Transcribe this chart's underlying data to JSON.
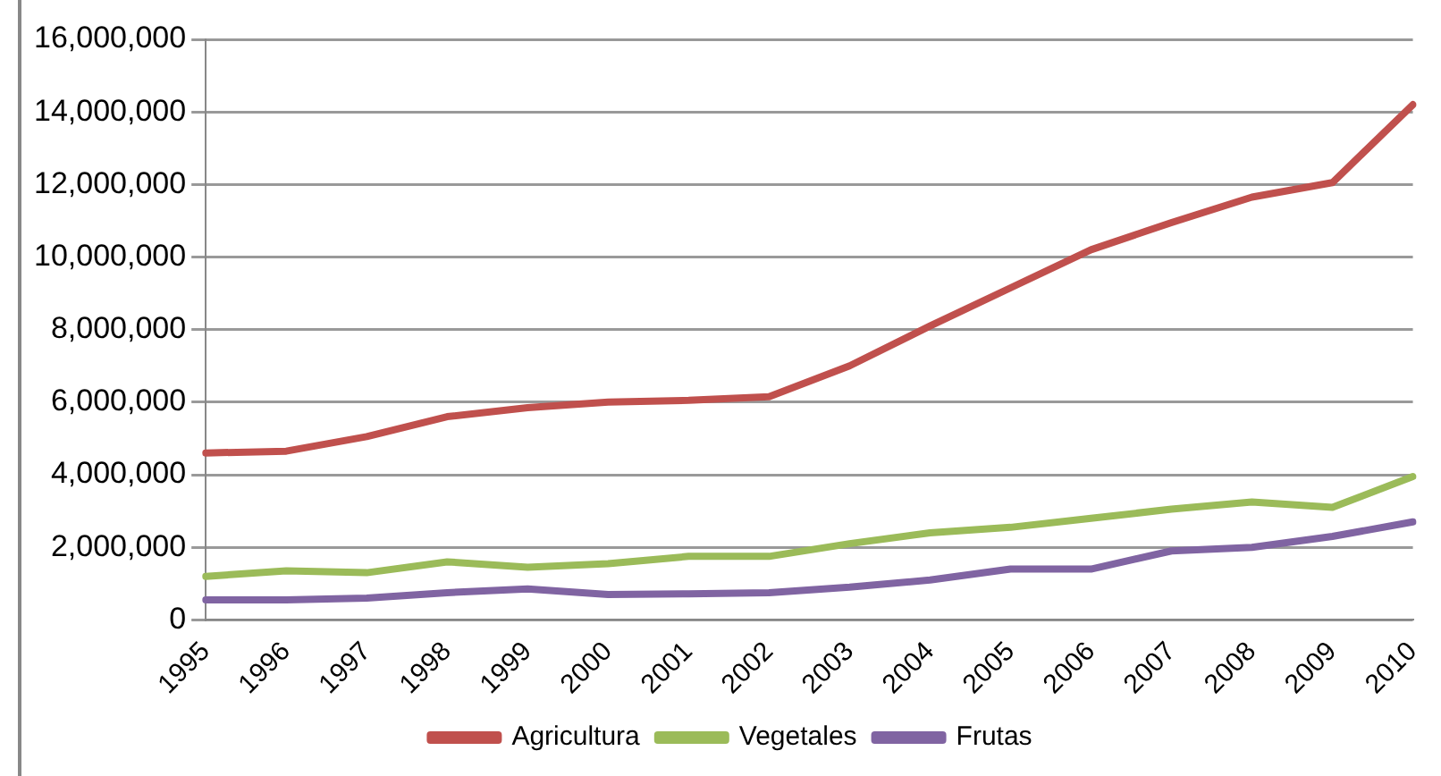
{
  "chart_data": {
    "type": "line",
    "categories": [
      "1995",
      "1996",
      "1997",
      "1998",
      "1999",
      "2000",
      "2001",
      "2002",
      "2003",
      "2004",
      "2005",
      "2006",
      "2007",
      "2008",
      "2009",
      "2010"
    ],
    "series": [
      {
        "name": "Agricultura",
        "color": "#c0504d",
        "values": [
          4600000,
          4650000,
          5050000,
          5600000,
          5850000,
          6000000,
          6050000,
          6150000,
          7000000,
          8100000,
          9150000,
          10200000,
          10950000,
          11650000,
          12050000,
          14200000
        ]
      },
      {
        "name": "Vegetales",
        "color": "#9bbb59",
        "values": [
          1200000,
          1350000,
          1300000,
          1600000,
          1450000,
          1550000,
          1750000,
          1750000,
          2100000,
          2400000,
          2550000,
          2800000,
          3050000,
          3250000,
          3100000,
          3950000
        ]
      },
      {
        "name": "Frutas",
        "color": "#8064a2",
        "values": [
          550000,
          550000,
          600000,
          750000,
          850000,
          700000,
          720000,
          750000,
          900000,
          1100000,
          1400000,
          1400000,
          1900000,
          2000000,
          2300000,
          2700000
        ]
      }
    ],
    "ylim": [
      0,
      16000000
    ],
    "yticks": [
      0,
      {
        "value": 2000000,
        "label": "2,000,000"
      },
      {
        "value": 4000000,
        "label": "4,000,000"
      },
      {
        "value": 6000000,
        "label": "6,000,000"
      },
      {
        "value": 8000000,
        "label": "8,000,000"
      },
      {
        "value": 10000000,
        "label": "10,000,000"
      },
      {
        "value": 12000000,
        "label": "12,000,000"
      },
      {
        "value": 14000000,
        "label": "14,000,000"
      },
      {
        "value": 16000000,
        "label": "16,000,000"
      }
    ],
    "grid": "y",
    "legend": "bottom",
    "marker": "none",
    "line_style": "solid"
  }
}
